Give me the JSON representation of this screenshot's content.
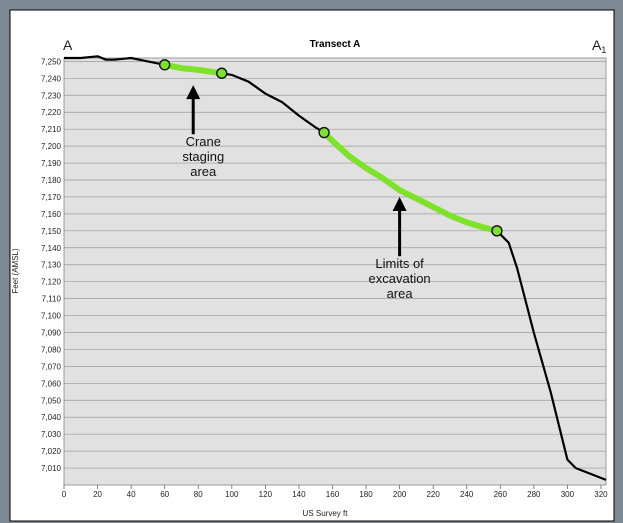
{
  "chart_data": {
    "type": "line",
    "title": "Transect A",
    "xlabel": "US Survey ft",
    "ylabel": "Feet (AMSL)",
    "xlim": [
      0,
      323
    ],
    "ylim": [
      7000,
      7252
    ],
    "grid": true,
    "endpoint_labels": {
      "left": "A",
      "right_main": "A",
      "right_sub": "1"
    },
    "x_ticks": [
      "0",
      "20",
      "40",
      "60",
      "80",
      "100",
      "120",
      "140",
      "160",
      "180",
      "200",
      "220",
      "240",
      "260",
      "280",
      "300",
      "320"
    ],
    "y_ticks": [
      "7,010",
      "7,020",
      "7,030",
      "7,040",
      "7,050",
      "7,060",
      "7,070",
      "7,080",
      "7,090",
      "7,100",
      "7,110",
      "7,120",
      "7,130",
      "7,140",
      "7,150",
      "7,160",
      "7,170",
      "7,180",
      "7,190",
      "7,200",
      "7,210",
      "7,220",
      "7,230",
      "7,240",
      "7,250"
    ],
    "series": [
      {
        "color": "#000000",
        "x": [
          0,
          10,
          20,
          25,
          30,
          40,
          50,
          60,
          70,
          80,
          94,
          100,
          110,
          120,
          130,
          140,
          150,
          155,
          160,
          170,
          180,
          190,
          200,
          210,
          220,
          230,
          240,
          250,
          258,
          265,
          270,
          280,
          290,
          300,
          305,
          310,
          323
        ],
        "y": [
          7252,
          7252,
          7253,
          7251,
          7251,
          7252,
          7250,
          7248,
          7246,
          7245,
          7243,
          7242,
          7238,
          7231,
          7226,
          7218,
          7211,
          7208,
          7203,
          7194,
          7187,
          7181,
          7174,
          7169,
          7164,
          7159,
          7155,
          7152,
          7150,
          7143,
          7128,
          7090,
          7055,
          7015,
          7010,
          7008,
          7003
        ]
      }
    ],
    "highlight_segments": [
      {
        "color": "#7ee22a",
        "x": [
          60,
          70,
          80,
          94
        ],
        "y": [
          7248,
          7246,
          7245,
          7243
        ]
      },
      {
        "color": "#7ee22a",
        "x": [
          155,
          160,
          170,
          180,
          190,
          200,
          210,
          220,
          230,
          240,
          250,
          258
        ],
        "y": [
          7208,
          7203,
          7194,
          7187,
          7181,
          7174,
          7169,
          7164,
          7159,
          7155,
          7152,
          7150
        ]
      }
    ],
    "markers": [
      {
        "x": 60,
        "y": 7248
      },
      {
        "x": 94,
        "y": 7243
      },
      {
        "x": 155,
        "y": 7208
      },
      {
        "x": 258,
        "y": 7150
      }
    ],
    "annotations": [
      {
        "lines": [
          "Crane",
          "staging",
          "area"
        ],
        "arrow_tip": {
          "x": 77,
          "y": 7236
        },
        "arrow_tail": {
          "x": 77,
          "y": 7207
        },
        "text_at": {
          "x": 83,
          "y": 7200
        }
      },
      {
        "lines": [
          "Limits of",
          "excavation",
          "area"
        ],
        "arrow_tip": {
          "x": 200,
          "y": 7170
        },
        "arrow_tail": {
          "x": 200,
          "y": 7135
        },
        "text_at": {
          "x": 200,
          "y": 7128
        }
      }
    ]
  }
}
